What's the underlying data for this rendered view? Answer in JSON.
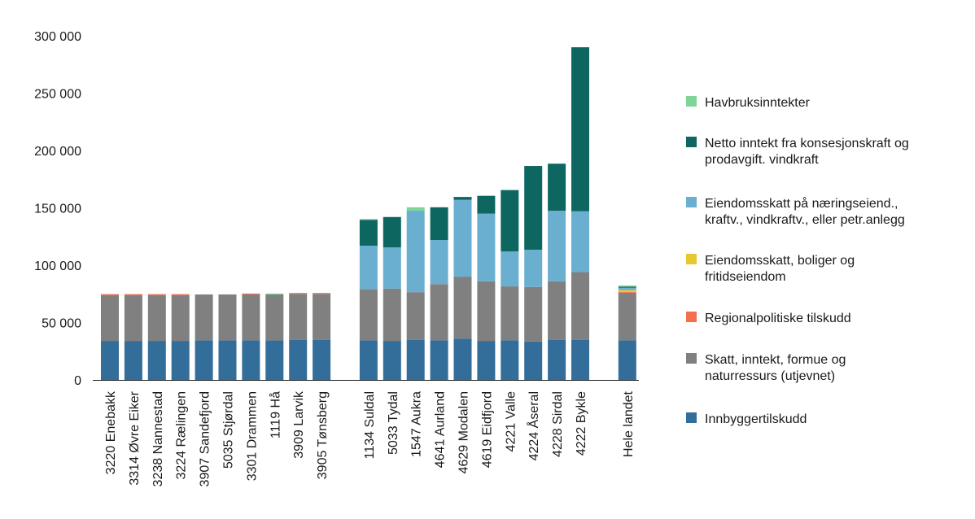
{
  "chart_data": {
    "type": "bar",
    "stacked": true,
    "ylim": [
      0,
      300000
    ],
    "yticks": [
      "0",
      "50 000",
      "100 000",
      "150 000",
      "200 000",
      "250 000",
      "300 000"
    ],
    "grid": false,
    "legend_position": "right",
    "categories": [
      "3220 Enebakk",
      "3314 Øvre Eiker",
      "3238 Nannestad",
      "3224 Rælingen",
      "3907 Sandefjord",
      "5035 Stjørdal",
      "3301 Drammen",
      "1119 Hå",
      "3909 Larvik",
      "3905 Tønsberg",
      "",
      "1134 Suldal",
      "5033 Tydal",
      "1547 Aukra",
      "4641 Aurland",
      "4629 Modalen",
      "4619 Eidfjord",
      "4221 Valle",
      "4224 Åseral",
      "4228 Sirdal",
      "4222 Bykle",
      "",
      "Hele landet"
    ],
    "series": [
      {
        "name": "Innbyggertilskudd",
        "color": "#336d99",
        "values": [
          34000,
          34000,
          34000,
          34000,
          34500,
          34500,
          34500,
          34500,
          35000,
          35000,
          null,
          34500,
          34000,
          35000,
          34500,
          36000,
          34000,
          34500,
          33500,
          35000,
          35000,
          null,
          34500
        ]
      },
      {
        "name": "Skatt, inntekt, formue og naturressurs (utjevnet)",
        "color": "#808080",
        "values": [
          40000,
          40000,
          40000,
          40000,
          40000,
          40000,
          40000,
          40000,
          40000,
          40000,
          null,
          44500,
          45500,
          41500,
          49000,
          54000,
          52000,
          47000,
          47500,
          51000,
          59000,
          null,
          41500
        ]
      },
      {
        "name": "Regionalpolitiske tilskudd",
        "color": "#f2704e",
        "values": [
          800,
          800,
          800,
          800,
          0,
          0,
          800,
          0,
          800,
          800,
          null,
          0,
          0,
          0,
          0,
          0,
          0,
          0,
          0,
          0,
          0,
          null,
          800
        ]
      },
      {
        "name": "Eiendomsskatt, boliger og fritidseiendom",
        "color": "#e8c830",
        "values": [
          0,
          0,
          0,
          0,
          0,
          0,
          0,
          0,
          0,
          0,
          null,
          0,
          0,
          0,
          0,
          0,
          0,
          0,
          0,
          0,
          0,
          null,
          1500
        ]
      },
      {
        "name": "Eiendomsskatt på næringseiend., kraftv., vindkraftv., eller petr.anlegg",
        "color": "#6aafcf",
        "values": [
          0,
          0,
          0,
          0,
          0,
          0,
          0,
          0,
          0,
          0,
          null,
          38000,
          36000,
          71000,
          38500,
          67000,
          59000,
          30500,
          32500,
          61500,
          53000,
          null,
          2000
        ]
      },
      {
        "name": "Netto inntekt fra konsesjonskraft og prodavgift. vindkraft",
        "color": "#0d6660",
        "values": [
          0,
          0,
          0,
          0,
          0,
          0,
          0,
          0,
          0,
          0,
          null,
          22500,
          26500,
          0,
          28500,
          2500,
          15500,
          53500,
          73000,
          41000,
          143000,
          null,
          1000
        ]
      },
      {
        "name": "Havbruksinntekter",
        "color": "#7dd698",
        "values": [
          0,
          0,
          0,
          0,
          0,
          0,
          0,
          800,
          0,
          0,
          null,
          800,
          0,
          3000,
          0,
          0,
          0,
          0,
          0,
          0,
          0,
          null,
          1000
        ]
      }
    ]
  }
}
